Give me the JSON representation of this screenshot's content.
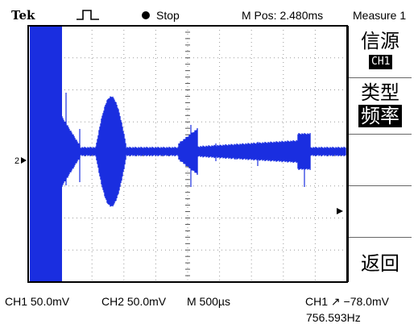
{
  "status": {
    "brand": "Tek",
    "run_state": "Stop",
    "m_pos": "M Pos: 2.480ms",
    "menu_title": "Measure 1"
  },
  "menu": {
    "source_label": "信源",
    "source_value": "CH1",
    "type_label": "类型",
    "type_value": "频率",
    "back_label": "返回"
  },
  "channel_markers": {
    "ch1": "2"
  },
  "bottom": {
    "ch1_scale": "CH1  50.0mV",
    "ch2_scale": "CH2  50.0mV",
    "timebase": "M 500µs",
    "trigger": "CH1  ↗  −78.0mV",
    "frequency": "756.593Hz"
  },
  "colors": {
    "trace": "#1a2ee0",
    "grid": "#9a9a9a",
    "frame": "#000000"
  }
}
